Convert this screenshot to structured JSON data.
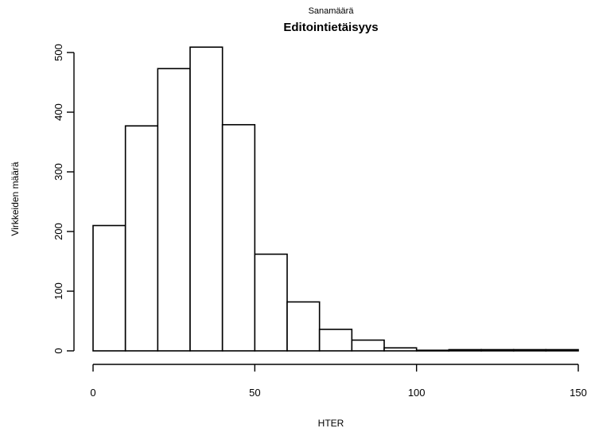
{
  "chart_data": {
    "type": "bar",
    "title": "Editointietäisyys",
    "subtitle": "Sanamäärä",
    "xlabel": "HTER",
    "ylabel": "Virkkeiden määrä",
    "bin_edges": [
      0,
      10,
      20,
      30,
      40,
      50,
      60,
      70,
      80,
      90,
      100,
      110,
      120,
      130,
      140,
      150
    ],
    "values": [
      210,
      377,
      473,
      509,
      379,
      162,
      82,
      36,
      18,
      5,
      1,
      2,
      2,
      2,
      2
    ],
    "xlim": [
      0,
      150
    ],
    "ylim": [
      0,
      500
    ],
    "x_ticks": [
      "0",
      "50",
      "100",
      "150"
    ],
    "y_ticks": [
      "0",
      "100",
      "200",
      "300",
      "400",
      "500"
    ],
    "grid": false,
    "colors": {
      "bar_fill": "#ffffff",
      "bar_stroke": "#000000"
    }
  }
}
